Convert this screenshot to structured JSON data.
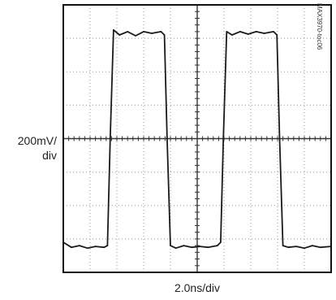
{
  "chart_data": {
    "type": "line",
    "y_scale_label": [
      "200mV/",
      "div"
    ],
    "x_scale_label": "2.0ns/div",
    "figure_id": "MAX3970-toc06",
    "grid": {
      "divisions_x": 10,
      "divisions_y": 8,
      "minor_ticks_per_div": 5
    },
    "xlim": [
      0,
      20
    ],
    "ylim": [
      -800,
      800
    ],
    "series": [
      {
        "x": [
          0,
          0.6,
          1.2,
          1.8,
          2.4,
          3.05,
          3.3,
          3.5,
          3.75,
          4.2,
          4.8,
          5.4,
          6.0,
          6.6,
          7.3,
          7.55,
          7.75,
          8.0,
          8.4,
          9.0,
          9.6,
          10.2,
          10.8,
          11.5,
          11.75,
          11.95,
          12.2,
          12.6,
          13.2,
          13.8,
          14.4,
          15.0,
          15.7,
          15.95,
          16.15,
          16.4,
          16.8,
          17.4,
          18.0,
          18.6,
          19.2,
          20.0
        ],
        "y": [
          -620,
          -650,
          -640,
          -655,
          -645,
          -650,
          -640,
          0,
          650,
          620,
          640,
          615,
          640,
          630,
          640,
          620,
          0,
          -640,
          -655,
          -640,
          -650,
          -645,
          -650,
          -640,
          -620,
          0,
          640,
          620,
          640,
          625,
          640,
          630,
          640,
          620,
          0,
          -640,
          -650,
          -645,
          -655,
          -640,
          -650,
          -645
        ]
      }
    ]
  }
}
